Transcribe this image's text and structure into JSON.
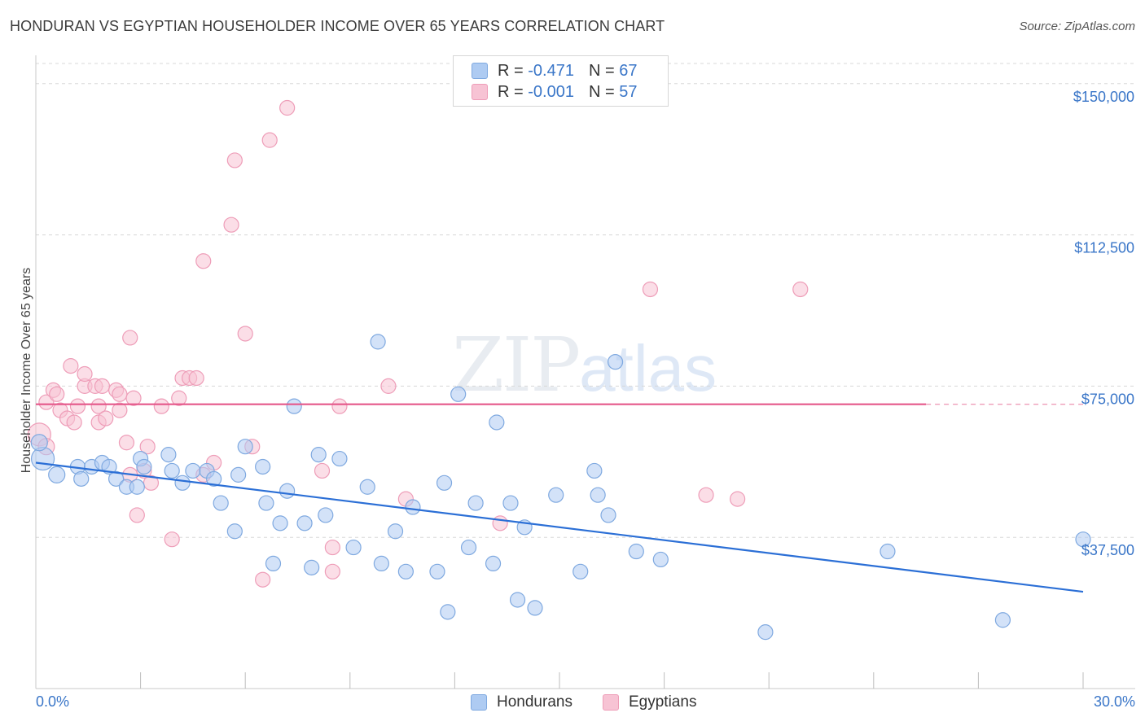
{
  "header": {
    "title": "HONDURAN VS EGYPTIAN HOUSEHOLDER INCOME OVER 65 YEARS CORRELATION CHART",
    "source": "Source: ZipAtlas.com"
  },
  "watermark": {
    "zip": "ZIP",
    "atlas": "atlas"
  },
  "legend": {
    "series1": {
      "r_label": "R = ",
      "r_value": "-0.471",
      "n_label": "N = ",
      "n_value": "67"
    },
    "series2": {
      "r_label": "R = ",
      "r_value": "-0.001",
      "n_label": "N = ",
      "n_value": "57"
    }
  },
  "colors": {
    "hondurans_fill": "#aecbf2",
    "hondurans_stroke": "#7fa9e0",
    "hondurans_line": "#2b6fd6",
    "egyptians_fill": "#f7c3d4",
    "egyptians_stroke": "#ee9db8",
    "egyptians_line": "#e5578a",
    "tick_text": "#3a76c8",
    "grid": "#d8d8d8"
  },
  "chart_data": {
    "type": "scatter",
    "title": "HONDURAN VS EGYPTIAN HOUSEHOLDER INCOME OVER 65 YEARS CORRELATION CHART",
    "xlabel": "",
    "ylabel": "Householder Income Over 65 years",
    "xlim": [
      0,
      30
    ],
    "ylim": [
      0,
      155000
    ],
    "x_tick_labels": [
      "0.0%",
      "30.0%"
    ],
    "y_ticks": [
      37500,
      75000,
      112500,
      150000
    ],
    "y_tick_labels": [
      "$37,500",
      "$75,000",
      "$112,500",
      "$150,000"
    ],
    "grid": true,
    "legend_position": "top-center",
    "series": [
      {
        "name": "Hondurans",
        "r": -0.471,
        "n": 67,
        "trend": {
          "x": [
            0,
            30
          ],
          "y": [
            56000,
            24000
          ]
        },
        "points": [
          [
            0.2,
            57000,
            14
          ],
          [
            0.1,
            61000,
            10
          ],
          [
            0.6,
            53000,
            10
          ],
          [
            1.2,
            55000,
            9
          ],
          [
            1.3,
            52000,
            9
          ],
          [
            1.6,
            55000,
            9
          ],
          [
            1.9,
            56000,
            9
          ],
          [
            2.1,
            55000,
            9
          ],
          [
            2.3,
            52000,
            9
          ],
          [
            2.6,
            50000,
            9
          ],
          [
            2.9,
            50000,
            9
          ],
          [
            3.0,
            57000,
            9
          ],
          [
            3.1,
            55000,
            9
          ],
          [
            3.8,
            58000,
            9
          ],
          [
            3.9,
            54000,
            9
          ],
          [
            4.2,
            51000,
            9
          ],
          [
            4.5,
            54000,
            9
          ],
          [
            4.9,
            54000,
            9
          ],
          [
            5.1,
            52000,
            9
          ],
          [
            5.3,
            46000,
            9
          ],
          [
            5.7,
            39000,
            9
          ],
          [
            5.8,
            53000,
            9
          ],
          [
            6.0,
            60000,
            9
          ],
          [
            6.5,
            55000,
            9
          ],
          [
            6.6,
            46000,
            9
          ],
          [
            6.8,
            31000,
            9
          ],
          [
            7.0,
            41000,
            9
          ],
          [
            7.2,
            49000,
            9
          ],
          [
            7.4,
            70000,
            9
          ],
          [
            7.7,
            41000,
            9
          ],
          [
            7.9,
            30000,
            9
          ],
          [
            8.1,
            58000,
            9
          ],
          [
            8.3,
            43000,
            9
          ],
          [
            8.7,
            57000,
            9
          ],
          [
            9.1,
            35000,
            9
          ],
          [
            9.5,
            50000,
            9
          ],
          [
            9.8,
            86000,
            9
          ],
          [
            9.9,
            31000,
            9
          ],
          [
            10.3,
            39000,
            9
          ],
          [
            10.6,
            29000,
            9
          ],
          [
            10.8,
            45000,
            9
          ],
          [
            11.5,
            29000,
            9
          ],
          [
            11.7,
            51000,
            9
          ],
          [
            11.8,
            19000,
            9
          ],
          [
            12.1,
            73000,
            9
          ],
          [
            12.4,
            35000,
            9
          ],
          [
            12.6,
            46000,
            9
          ],
          [
            13.1,
            31000,
            9
          ],
          [
            13.2,
            66000,
            9
          ],
          [
            13.6,
            46000,
            9
          ],
          [
            13.8,
            22000,
            9
          ],
          [
            14.0,
            40000,
            9
          ],
          [
            14.3,
            20000,
            9
          ],
          [
            14.9,
            48000,
            9
          ],
          [
            15.6,
            29000,
            9
          ],
          [
            16.0,
            54000,
            9
          ],
          [
            16.1,
            48000,
            9
          ],
          [
            16.4,
            43000,
            9
          ],
          [
            16.6,
            81000,
            9
          ],
          [
            17.2,
            34000,
            9
          ],
          [
            17.9,
            32000,
            9
          ],
          [
            20.9,
            14000,
            9
          ],
          [
            24.4,
            34000,
            9
          ],
          [
            27.7,
            17000,
            9
          ],
          [
            30.0,
            37000,
            9
          ]
        ]
      },
      {
        "name": "Egyptians",
        "r": -0.001,
        "n": 57,
        "trend": {
          "x": [
            0,
            25.5
          ],
          "y": [
            70500,
            70500
          ]
        },
        "dashed_extension": {
          "x": [
            25.5,
            30
          ],
          "y": [
            70500,
            70500
          ]
        },
        "points": [
          [
            0.1,
            63000,
            14
          ],
          [
            0.3,
            60000,
            10
          ],
          [
            0.3,
            71000,
            9
          ],
          [
            0.5,
            74000,
            9
          ],
          [
            0.6,
            73000,
            9
          ],
          [
            0.7,
            69000,
            9
          ],
          [
            0.9,
            67000,
            9
          ],
          [
            1.0,
            80000,
            9
          ],
          [
            1.1,
            66000,
            9
          ],
          [
            1.2,
            70000,
            9
          ],
          [
            1.4,
            75000,
            9
          ],
          [
            1.4,
            78000,
            9
          ],
          [
            1.7,
            75000,
            9
          ],
          [
            1.8,
            66000,
            9
          ],
          [
            1.9,
            75000,
            9
          ],
          [
            1.8,
            70000,
            9
          ],
          [
            2.0,
            67000,
            9
          ],
          [
            2.3,
            74000,
            9
          ],
          [
            2.4,
            73000,
            9
          ],
          [
            2.4,
            69000,
            9
          ],
          [
            2.6,
            61000,
            9
          ],
          [
            2.7,
            53000,
            9
          ],
          [
            2.7,
            87000,
            9
          ],
          [
            2.8,
            72000,
            9
          ],
          [
            2.9,
            43000,
            9
          ],
          [
            3.1,
            54000,
            9
          ],
          [
            3.2,
            60000,
            9
          ],
          [
            3.3,
            51000,
            9
          ],
          [
            3.6,
            70000,
            9
          ],
          [
            3.9,
            37000,
            9
          ],
          [
            4.1,
            72000,
            9
          ],
          [
            4.2,
            77000,
            9
          ],
          [
            4.4,
            77000,
            9
          ],
          [
            4.6,
            77000,
            9
          ],
          [
            4.8,
            53000,
            9
          ],
          [
            4.8,
            106000,
            9
          ],
          [
            5.1,
            56000,
            9
          ],
          [
            5.6,
            115000,
            9
          ],
          [
            5.7,
            131000,
            9
          ],
          [
            6.0,
            88000,
            9
          ],
          [
            6.2,
            60000,
            9
          ],
          [
            6.5,
            27000,
            9
          ],
          [
            6.7,
            136000,
            9
          ],
          [
            7.2,
            144000,
            9
          ],
          [
            8.2,
            54000,
            9
          ],
          [
            8.5,
            29000,
            9
          ],
          [
            8.5,
            35000,
            9
          ],
          [
            8.7,
            70000,
            9
          ],
          [
            10.1,
            75000,
            9
          ],
          [
            10.6,
            47000,
            9
          ],
          [
            13.3,
            41000,
            9
          ],
          [
            17.6,
            99000,
            9
          ],
          [
            19.2,
            48000,
            9
          ],
          [
            20.1,
            47000,
            9
          ],
          [
            21.9,
            99000,
            9
          ]
        ]
      }
    ]
  }
}
